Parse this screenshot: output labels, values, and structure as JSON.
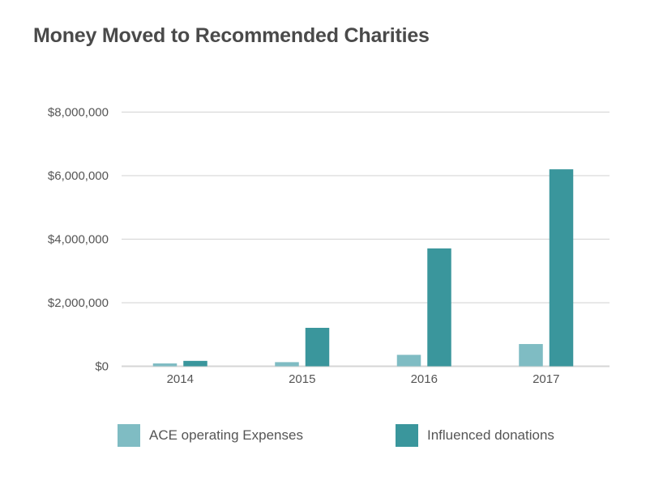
{
  "chart_data": {
    "type": "bar",
    "title": "Money Moved to Recommended Charities",
    "categories": [
      "2014",
      "2015",
      "2016",
      "2017"
    ],
    "series": [
      {
        "name": "ACE operating Expenses",
        "color": "#7fbcc3",
        "values": [
          90000,
          130000,
          360000,
          700000
        ]
      },
      {
        "name": "Influenced donations",
        "color": "#3a969c",
        "values": [
          170000,
          1210000,
          3710000,
          6200000
        ]
      }
    ],
    "ylim": [
      0,
      8000000
    ],
    "yticks": [
      0,
      2000000,
      4000000,
      6000000,
      8000000
    ],
    "ytick_labels": [
      "$0",
      "$2,000,000",
      "$4,000,000",
      "$6,000,000",
      "$8,000,000"
    ],
    "xlabel": "",
    "ylabel": "",
    "grid": true,
    "legend": "bottom"
  }
}
